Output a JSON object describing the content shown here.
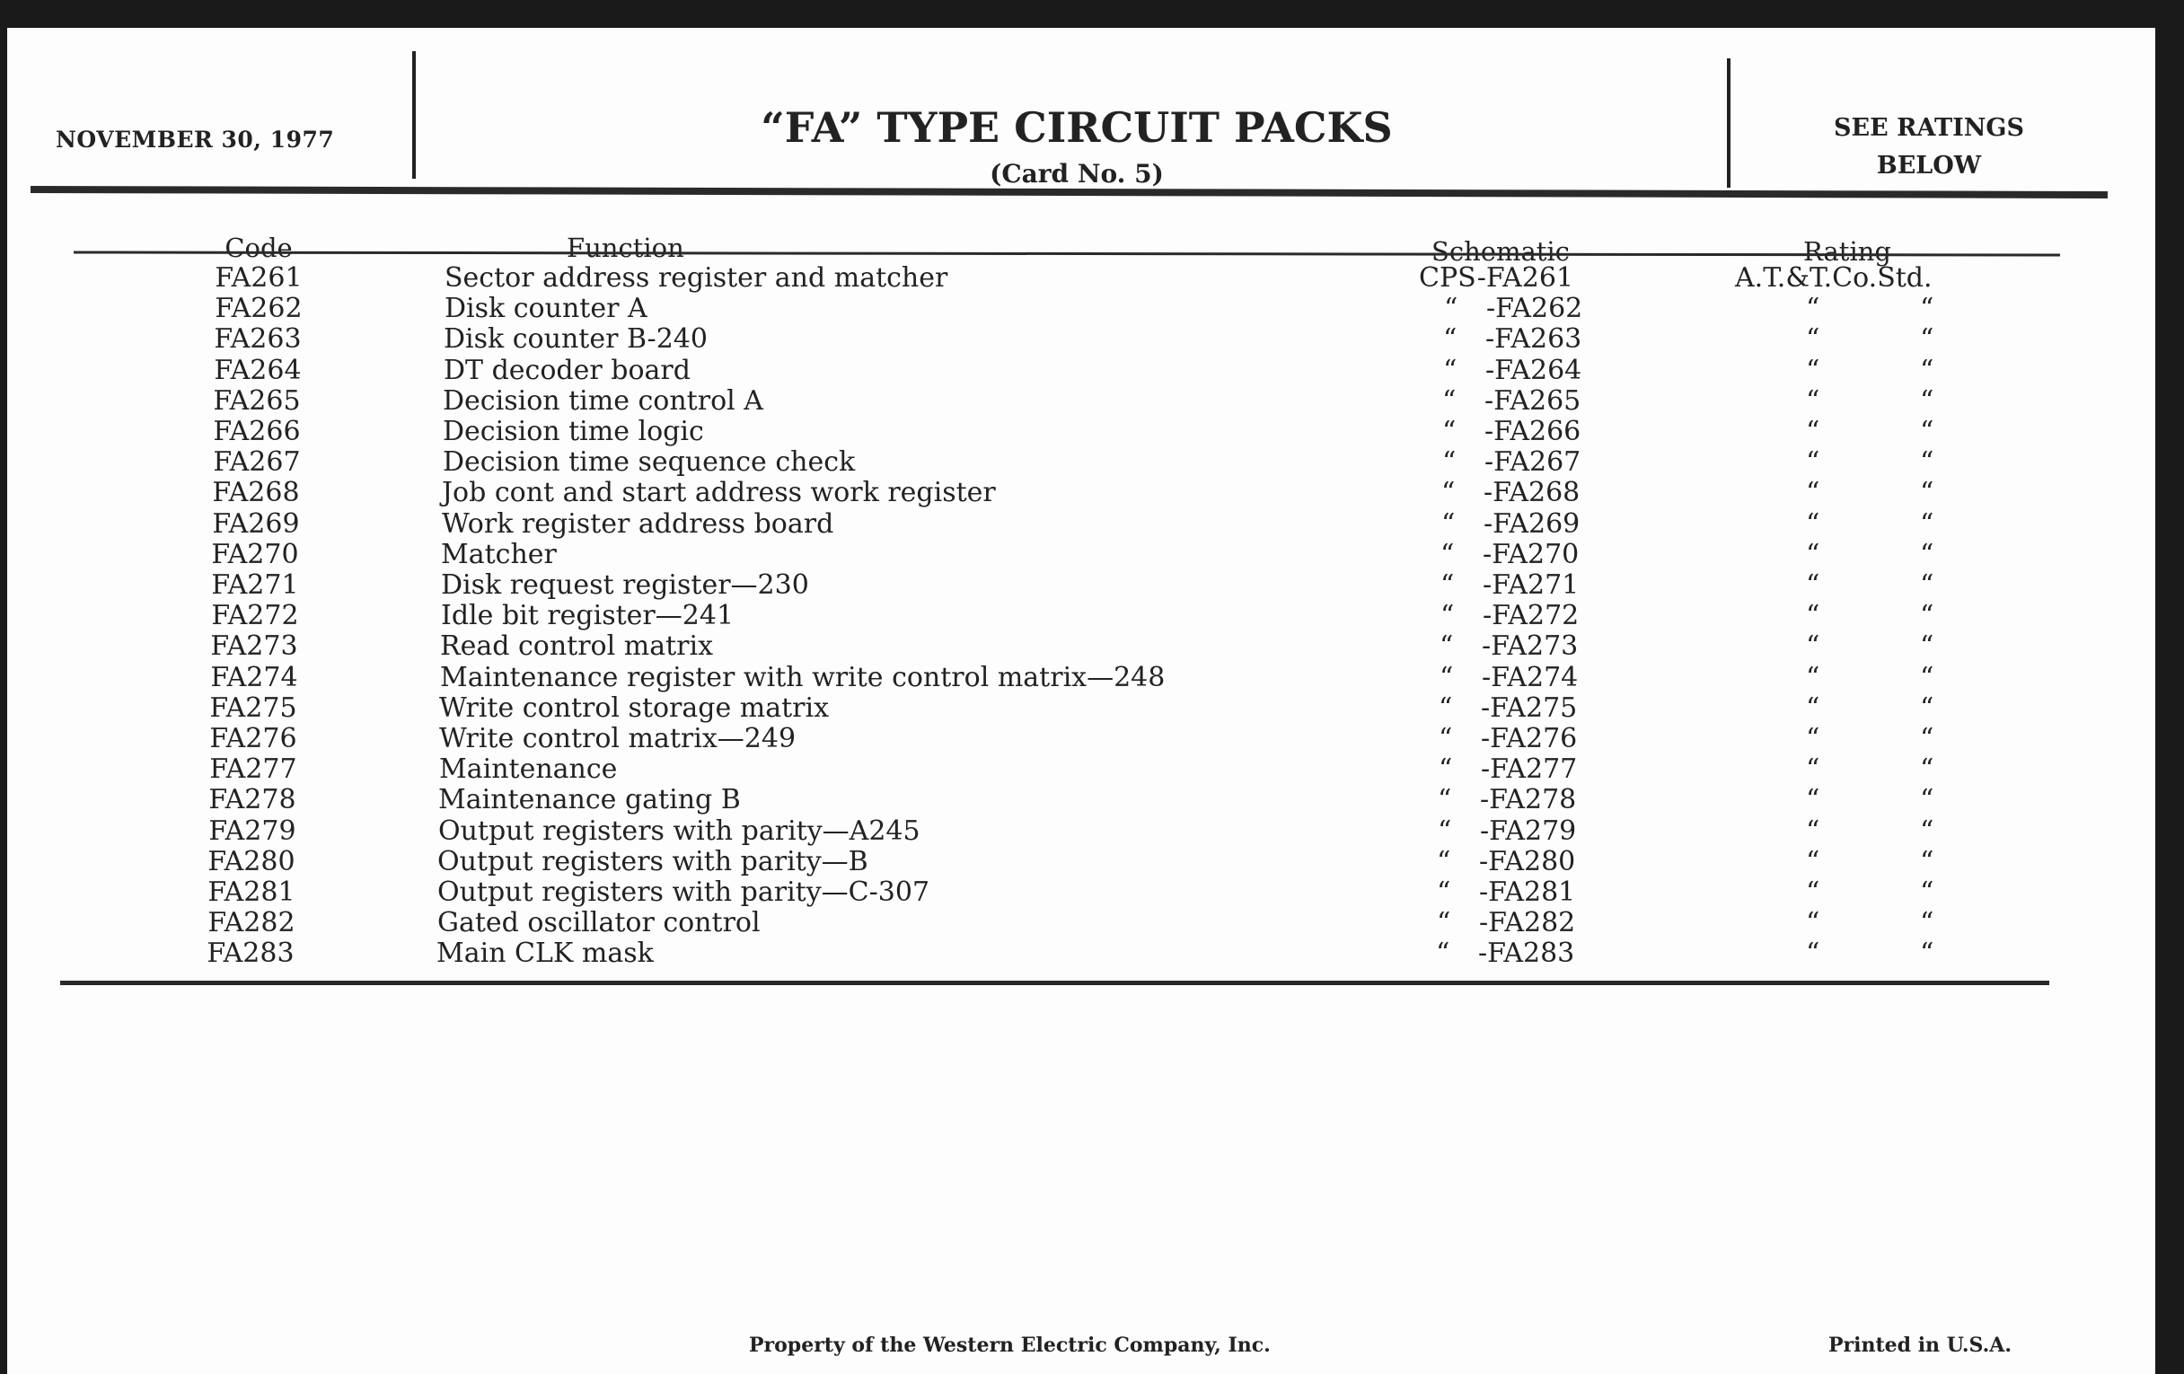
{
  "header": {
    "date": "NOVEMBER 30, 1977",
    "title": "“FA” TYPE CIRCUIT PACKS",
    "subtitle": "(Card No. 5)",
    "ratings_note_line1": "SEE RATINGS",
    "ratings_note_line2": "BELOW"
  },
  "columns": {
    "code": "Code",
    "function": "Function",
    "schematic": "Schematic",
    "rating": "Rating"
  },
  "rows": [
    {
      "code": "FA261",
      "function": "Sector address register and matcher",
      "schematic_ditto": "",
      "schematic": "CPS-FA261",
      "rating": "A.T.&T.Co.Std.",
      "rating_ditto": [
        "",
        ""
      ]
    },
    {
      "code": "FA262",
      "function": "Disk counter A",
      "schematic_ditto": "“",
      "schematic": "-FA262",
      "rating": "",
      "rating_ditto": [
        "“",
        "“"
      ]
    },
    {
      "code": "FA263",
      "function": "Disk counter B-240",
      "schematic_ditto": "“",
      "schematic": "-FA263",
      "rating": "",
      "rating_ditto": [
        "“",
        "“"
      ]
    },
    {
      "code": "FA264",
      "function": "DT decoder board",
      "schematic_ditto": "“",
      "schematic": "-FA264",
      "rating": "",
      "rating_ditto": [
        "“",
        "“"
      ]
    },
    {
      "code": "FA265",
      "function": "Decision time control A",
      "schematic_ditto": "“",
      "schematic": "-FA265",
      "rating": "",
      "rating_ditto": [
        "“",
        "“"
      ]
    },
    {
      "code": "FA266",
      "function": "Decision time logic",
      "schematic_ditto": "“",
      "schematic": "-FA266",
      "rating": "",
      "rating_ditto": [
        "“",
        "“"
      ]
    },
    {
      "code": "FA267",
      "function": "Decision time sequence check",
      "schematic_ditto": "“",
      "schematic": "-FA267",
      "rating": "",
      "rating_ditto": [
        "“",
        "“"
      ]
    },
    {
      "code": "FA268",
      "function": "Job cont and start address work register",
      "schematic_ditto": "“",
      "schematic": "-FA268",
      "rating": "",
      "rating_ditto": [
        "“",
        "“"
      ]
    },
    {
      "code": "FA269",
      "function": "Work register address board",
      "schematic_ditto": "“",
      "schematic": "-FA269",
      "rating": "",
      "rating_ditto": [
        "“",
        "“"
      ]
    },
    {
      "code": "FA270",
      "function": "Matcher",
      "schematic_ditto": "“",
      "schematic": "-FA270",
      "rating": "",
      "rating_ditto": [
        "“",
        "“"
      ]
    },
    {
      "code": "FA271",
      "function": "Disk request register—230",
      "schematic_ditto": "“",
      "schematic": "-FA271",
      "rating": "",
      "rating_ditto": [
        "“",
        "“"
      ]
    },
    {
      "code": "FA272",
      "function": "Idle bit register—241",
      "schematic_ditto": "“",
      "schematic": "-FA272",
      "rating": "",
      "rating_ditto": [
        "“",
        "“"
      ]
    },
    {
      "code": "FA273",
      "function": "Read control matrix",
      "schematic_ditto": "“",
      "schematic": "-FA273",
      "rating": "",
      "rating_ditto": [
        "“",
        "“"
      ]
    },
    {
      "code": "FA274",
      "function": "Maintenance register with write control matrix—248",
      "schematic_ditto": "“",
      "schematic": "-FA274",
      "rating": "",
      "rating_ditto": [
        "“",
        "“"
      ]
    },
    {
      "code": "FA275",
      "function": "Write control storage matrix",
      "schematic_ditto": "“",
      "schematic": "-FA275",
      "rating": "",
      "rating_ditto": [
        "“",
        "“"
      ]
    },
    {
      "code": "FA276",
      "function": "Write control matrix—249",
      "schematic_ditto": "“",
      "schematic": "-FA276",
      "rating": "",
      "rating_ditto": [
        "“",
        "“"
      ]
    },
    {
      "code": "FA277",
      "function": "Maintenance",
      "schematic_ditto": "“",
      "schematic": "-FA277",
      "rating": "",
      "rating_ditto": [
        "“",
        "“"
      ]
    },
    {
      "code": "FA278",
      "function": "Maintenance gating B",
      "schematic_ditto": "“",
      "schematic": "-FA278",
      "rating": "",
      "rating_ditto": [
        "“",
        "“"
      ]
    },
    {
      "code": "FA279",
      "function": "Output registers with parity—A245",
      "schematic_ditto": "“",
      "schematic": "-FA279",
      "rating": "",
      "rating_ditto": [
        "“",
        "“"
      ]
    },
    {
      "code": "FA280",
      "function": "Output registers with parity—B",
      "schematic_ditto": "“",
      "schematic": "-FA280",
      "rating": "",
      "rating_ditto": [
        "“",
        "“"
      ]
    },
    {
      "code": "FA281",
      "function": "Output registers with parity—C-307",
      "schematic_ditto": "“",
      "schematic": "-FA281",
      "rating": "",
      "rating_ditto": [
        "“",
        "“"
      ]
    },
    {
      "code": "FA282",
      "function": "Gated oscillator control",
      "schematic_ditto": "“",
      "schematic": "-FA282",
      "rating": "",
      "rating_ditto": [
        "“",
        "“"
      ]
    },
    {
      "code": "FA283",
      "function": "Main CLK mask",
      "schematic_ditto": "“",
      "schematic": "-FA283",
      "rating": "",
      "rating_ditto": [
        "“",
        "“"
      ]
    }
  ],
  "footer": {
    "property": "Property of the Western Electric Company, Inc.",
    "printed": "Printed in U.S.A."
  }
}
